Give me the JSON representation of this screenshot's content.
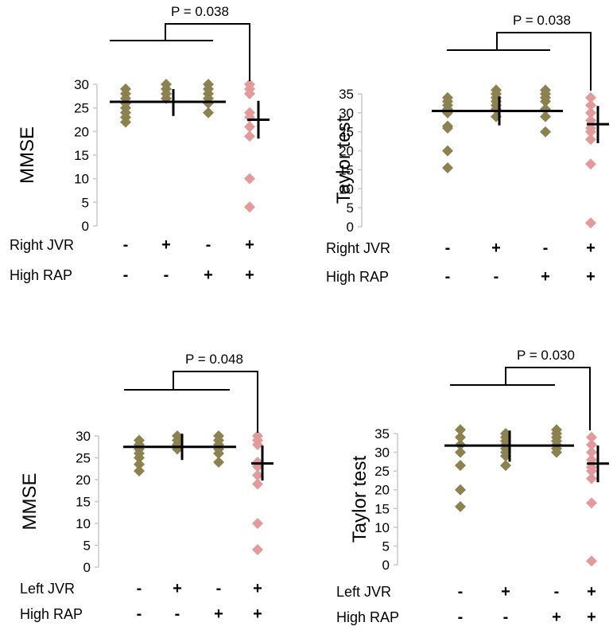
{
  "colors": {
    "normal": "#8b8250",
    "abnormal": "#e39a9a",
    "axis": "#c8c8c8",
    "line": "#000000"
  },
  "chart_data": [
    {
      "type": "scatter",
      "ylabel": "MMSE",
      "ylim": [
        0,
        30
      ],
      "yticks": [
        0,
        5,
        10,
        15,
        20,
        25,
        30
      ],
      "p_value": "P = 0.038",
      "groups": [
        {
          "points": [
            22,
            23,
            24,
            25,
            26,
            27,
            28,
            29
          ],
          "color": "normal"
        },
        {
          "points": [
            27,
            28,
            29,
            30
          ],
          "color": "normal"
        },
        {
          "points": [
            24,
            26,
            27,
            28,
            29,
            30
          ],
          "color": "normal"
        },
        {
          "points": [
            4,
            10,
            19,
            21,
            23,
            24,
            28,
            29,
            30
          ],
          "color": "abnormal"
        }
      ],
      "pooled_mean": 26.3,
      "pooled_error_center": 26.3,
      "pooled_error_range": [
        23.3,
        29.0
      ],
      "group4_mean": 22.5,
      "group4_error": [
        18.5,
        26.5
      ],
      "rows": [
        {
          "label": "Right JVR",
          "signs": [
            "-",
            "+",
            "-",
            "+"
          ]
        },
        {
          "label": "High RAP",
          "signs": [
            "-",
            "-",
            "+",
            "+"
          ]
        }
      ]
    },
    {
      "type": "scatter",
      "ylabel": "Taylor test",
      "ylim": [
        0,
        35
      ],
      "yticks": [
        0,
        5,
        10,
        15,
        20,
        25,
        30,
        35
      ],
      "p_value": "P = 0.038",
      "groups": [
        {
          "points": [
            15.5,
            20,
            26,
            26.5,
            30,
            31,
            32,
            33,
            34
          ],
          "color": "normal"
        },
        {
          "points": [
            29,
            31,
            32,
            33,
            34,
            35,
            36
          ],
          "color": "normal"
        },
        {
          "points": [
            25,
            29,
            31,
            33,
            34,
            35,
            36
          ],
          "color": "normal"
        },
        {
          "points": [
            1,
            16.5,
            23,
            25,
            26,
            28,
            30,
            32,
            34
          ],
          "color": "abnormal"
        }
      ],
      "pooled_mean": 30.5,
      "pooled_error_center": 30.5,
      "pooled_error_range": [
        26.7,
        34.3
      ],
      "group4_mean": 27,
      "group4_error": [
        22,
        31.8
      ],
      "rows": [
        {
          "label": "Right JVR",
          "signs": [
            "-",
            "+",
            "-",
            "+"
          ]
        },
        {
          "label": "High RAP",
          "signs": [
            "-",
            "-",
            "+",
            "+"
          ]
        }
      ]
    },
    {
      "type": "scatter",
      "ylabel": "MMSE",
      "ylim": [
        0,
        30
      ],
      "yticks": [
        0,
        5,
        10,
        15,
        20,
        25,
        30
      ],
      "p_value": "P = 0.048",
      "groups": [
        {
          "points": [
            22,
            23.5,
            25,
            26,
            27,
            28,
            29
          ],
          "color": "normal"
        },
        {
          "points": [
            27,
            28,
            29,
            30
          ],
          "color": "normal"
        },
        {
          "points": [
            24,
            26,
            27,
            28,
            29,
            30
          ],
          "color": "normal"
        },
        {
          "points": [
            4,
            10,
            19,
            21,
            23,
            24,
            28,
            29,
            30
          ],
          "color": "abnormal"
        }
      ],
      "pooled_mean": 27.5,
      "pooled_error_center": 27.5,
      "pooled_error_range": [
        24.5,
        30.5
      ],
      "group4_mean": 23.7,
      "group4_error": [
        19.8,
        27.8
      ],
      "rows": [
        {
          "label": "Left JVR",
          "signs": [
            "-",
            "+",
            "-",
            "+"
          ]
        },
        {
          "label": "High RAP",
          "signs": [
            "-",
            "-",
            "+",
            "+"
          ]
        }
      ]
    },
    {
      "type": "scatter",
      "ylabel": "Taylor test",
      "ylim": [
        0,
        35
      ],
      "yticks": [
        0,
        5,
        10,
        15,
        20,
        25,
        30,
        35
      ],
      "p_value": "P = 0.030",
      "groups": [
        {
          "points": [
            15.5,
            20,
            26.5,
            30,
            32,
            34,
            36
          ],
          "color": "normal"
        },
        {
          "points": [
            26.5,
            29,
            30,
            31,
            32,
            33,
            34,
            35
          ],
          "color": "normal"
        },
        {
          "points": [
            30,
            31,
            32,
            33,
            34,
            35,
            36
          ],
          "color": "normal"
        },
        {
          "points": [
            1,
            16.5,
            23,
            25,
            26,
            28,
            30,
            32,
            34
          ],
          "color": "abnormal"
        }
      ],
      "pooled_mean": 31.8,
      "pooled_error_center": 31.8,
      "pooled_error_range": [
        27.5,
        35.8
      ],
      "group4_mean": 27,
      "group4_error": [
        22,
        31.8
      ],
      "rows": [
        {
          "label": "Left JVR",
          "signs": [
            "-",
            "+",
            "-",
            "+"
          ]
        },
        {
          "label": "High RAP",
          "signs": [
            "-",
            "-",
            "+",
            "+"
          ]
        }
      ]
    }
  ]
}
